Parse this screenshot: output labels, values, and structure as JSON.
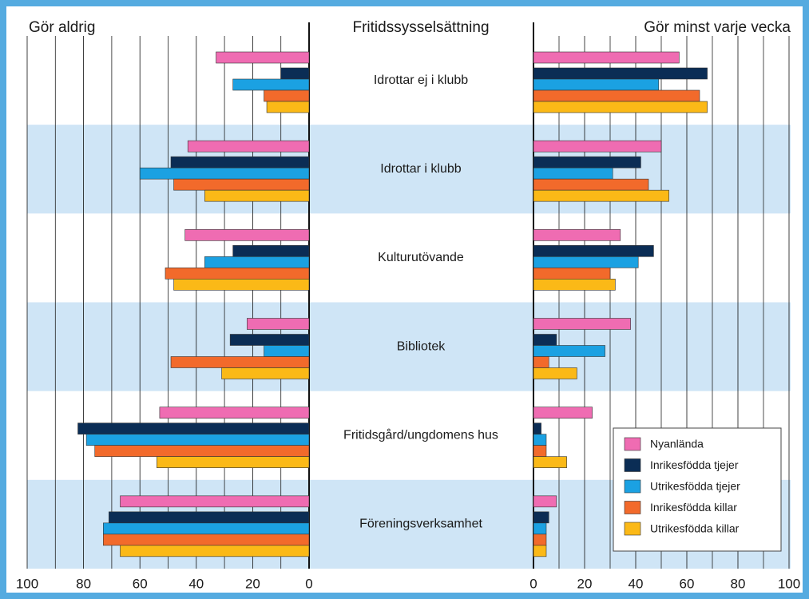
{
  "chart_data": {
    "type": "butterfly_bar",
    "left_title": "Gör aldrig",
    "center_title": "Fritidssysselsättning",
    "right_title": "Gör minst varje vecka",
    "categories": [
      "Idrottar ej i klubb",
      "Idrottar i klubb",
      "Kulturutövande",
      "Bibliotek",
      "Fritidsgård/ungdomens hus",
      "Föreningsverksamhet"
    ],
    "left_axis": {
      "xlim": [
        0,
        100
      ],
      "xticks": [
        100,
        80,
        60,
        40,
        20,
        0
      ],
      "xminor": [
        10,
        30,
        50,
        70,
        90
      ],
      "reversed": true
    },
    "right_axis": {
      "xlim": [
        0,
        100
      ],
      "xticks": [
        0,
        20,
        40,
        60,
        80,
        100
      ],
      "xminor": [
        10,
        30,
        50,
        70,
        90
      ],
      "reversed": false
    },
    "grid": true,
    "legend": "lower right",
    "series": [
      {
        "name": "Nyanlända",
        "color": "#ef6cb2",
        "left_values": [
          33,
          43,
          44,
          22,
          53,
          67
        ],
        "right_values": [
          57,
          50,
          34,
          38,
          23,
          9
        ]
      },
      {
        "name": "Inrikesfödda tjejer",
        "color": "#0b2d55",
        "left_values": [
          10,
          49,
          27,
          28,
          82,
          71
        ],
        "right_values": [
          68,
          42,
          47,
          9,
          3,
          6
        ]
      },
      {
        "name": "Utrikesfödda tjejer",
        "color": "#1ba1e2",
        "left_values": [
          27,
          60,
          37,
          16,
          79,
          73
        ],
        "right_values": [
          49,
          31,
          41,
          28,
          5,
          5
        ]
      },
      {
        "name": "Inrikesfödda killar",
        "color": "#f26a2b",
        "left_values": [
          16,
          48,
          51,
          49,
          76,
          73
        ],
        "right_values": [
          65,
          45,
          30,
          6,
          5,
          5
        ]
      },
      {
        "name": "Utrikesfödda killar",
        "color": "#fbb917",
        "left_values": [
          15,
          37,
          48,
          31,
          54,
          67
        ],
        "right_values": [
          68,
          53,
          32,
          17,
          13,
          5
        ]
      }
    ]
  }
}
